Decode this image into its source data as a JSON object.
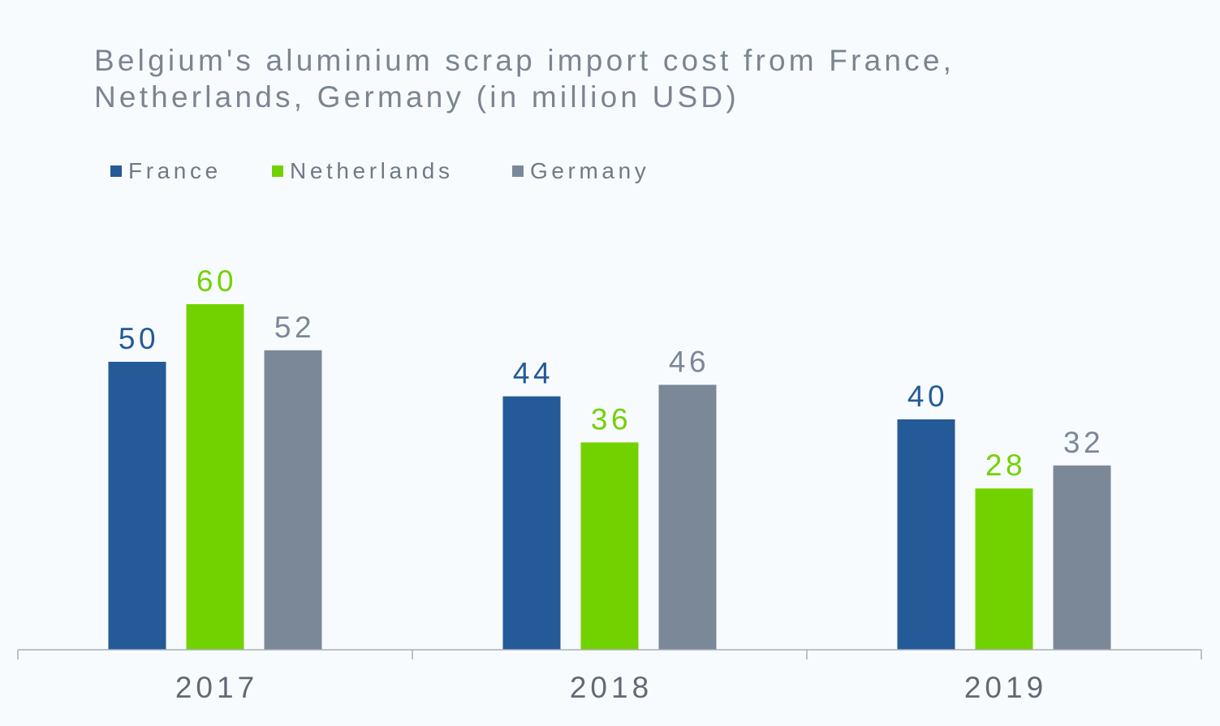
{
  "chart_data": {
    "type": "bar",
    "title": "Belgium's aluminium scrap import cost from France, Netherlands, Germany (in million USD)",
    "categories": [
      "2017",
      "2018",
      "2019"
    ],
    "series": [
      {
        "name": "France",
        "values": [
          50,
          44,
          40
        ],
        "color": "#245a97"
      },
      {
        "name": "Netherlands",
        "values": [
          60,
          36,
          28
        ],
        "color": "#72d200"
      },
      {
        "name": "Germany",
        "values": [
          52,
          46,
          32
        ],
        "color": "#7b8898"
      }
    ],
    "ylim": [
      0,
      70
    ],
    "grid": false,
    "legend_position": "top-left",
    "data_labels": true
  },
  "colors": {
    "title": "#7b8591",
    "axis": "#a9afb7",
    "tick_label": "#616a74",
    "background": "#f8fbfe"
  }
}
